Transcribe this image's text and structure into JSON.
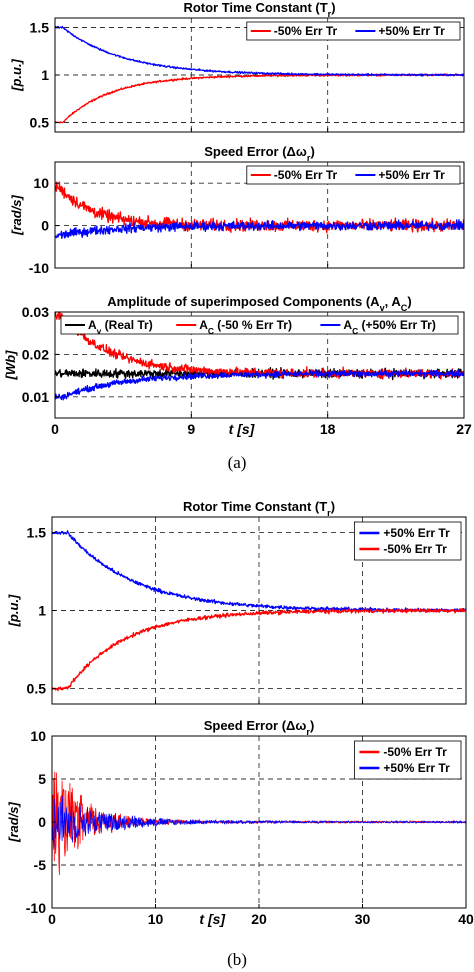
{
  "captions": {
    "a": "(a)",
    "b": "(b)"
  },
  "chart_data": [
    {
      "id": "a1",
      "type": "line",
      "title": "Rotor Time Constant (T",
      "title_sub": "r",
      "title_tail": ")",
      "ylabel": "[p.u.]",
      "xlim": [
        0,
        27
      ],
      "ylim": [
        0.4,
        1.6
      ],
      "xticks": [
        0,
        9,
        18,
        27
      ],
      "show_xticklabels": false,
      "yticks": [
        0.5,
        1,
        1.5
      ],
      "yticklabels": [
        "0.5",
        "1",
        "1.5"
      ],
      "grid": true,
      "legend_position": "top-right",
      "legend_layout": "row",
      "series": [
        {
          "name": "-50% Err Tr",
          "color": "#ff0000",
          "model": "exp",
          "start": 0.5,
          "end": 1.0,
          "tau": 3.2,
          "delay": 0.5,
          "noise": 0.008
        },
        {
          "name": "+50% Err Tr",
          "color": "#0000ff",
          "model": "exp",
          "start": 1.5,
          "end": 1.0,
          "tau": 4.0,
          "delay": 0.5,
          "noise": 0.008
        }
      ]
    },
    {
      "id": "a2",
      "type": "line",
      "title": "Speed Error (Δω",
      "title_sub": "r",
      "title_tail": ")",
      "ylabel": "[rad/s]",
      "xlim": [
        0,
        27
      ],
      "ylim": [
        -10,
        15
      ],
      "xticks": [
        0,
        9,
        18,
        27
      ],
      "show_xticklabels": false,
      "yticks": [
        -10,
        0,
        10
      ],
      "yticklabels": [
        "-10",
        "0",
        "10"
      ],
      "grid": true,
      "legend_position": "top-right",
      "legend_layout": "row",
      "series": [
        {
          "name": "-50% Err Tr",
          "color": "#ff0000",
          "model": "exp",
          "start": 9,
          "end": 0,
          "tau": 2.3,
          "delay": 0.3,
          "noise": 1.2
        },
        {
          "name": "+50% Err Tr",
          "color": "#0000ff",
          "model": "exp",
          "start": -2.5,
          "end": 0,
          "tau": 3.5,
          "delay": 0,
          "noise": 0.9
        }
      ]
    },
    {
      "id": "a3",
      "type": "line",
      "title": "Amplitude of superimposed Components (A",
      "title_sub": "v",
      "title_tail": ", A",
      "title_sub2": "C",
      "title_tail2": ")",
      "ylabel": "[Wb]",
      "xlabel": "t [s]",
      "xlim": [
        0,
        27
      ],
      "ylim": [
        0.005,
        0.03
      ],
      "xticks": [
        0,
        9,
        18,
        27
      ],
      "xticklabels": [
        "0",
        "9",
        "18",
        "27"
      ],
      "show_xticklabels": true,
      "yticks": [
        0.01,
        0.02,
        0.03
      ],
      "yticklabels": [
        "0.01",
        "0.02",
        "0.03"
      ],
      "grid": true,
      "legend_position": "top",
      "legend_layout": "row",
      "series": [
        {
          "name": "A",
          "name_sub": "v",
          "name_tail": " (Real Tr)",
          "color": "#000000",
          "model": "exp",
          "start": 0.0155,
          "end": 0.0155,
          "tau": 3,
          "delay": 0,
          "noise": 0.0009
        },
        {
          "name": "A",
          "name_sub": "C",
          "name_tail": " (-50 % Err Tr)",
          "color": "#ff0000",
          "model": "exp",
          "start": 0.029,
          "end": 0.0155,
          "tau": 3.2,
          "delay": 0.5,
          "noise": 0.0009
        },
        {
          "name": "A",
          "name_sub": "C",
          "name_tail": " (+50% Err Tr)",
          "color": "#0000ff",
          "model": "exp",
          "start": 0.01,
          "end": 0.0155,
          "tau": 4.0,
          "delay": 0.5,
          "noise": 0.0006
        }
      ]
    },
    {
      "id": "b1",
      "type": "line",
      "title": "Rotor Time Constant (T",
      "title_sub": "r",
      "title_tail": ")",
      "ylabel": "[p.u.]",
      "xlim": [
        0,
        40
      ],
      "ylim": [
        0.4,
        1.6
      ],
      "xticks": [
        0,
        10,
        20,
        30,
        40
      ],
      "show_xticklabels": false,
      "yticks": [
        0.5,
        1,
        1.5
      ],
      "yticklabels": [
        "0.5",
        "1",
        "1.5"
      ],
      "grid": true,
      "legend_position": "top-right",
      "legend_layout": "column",
      "series": [
        {
          "name": "+50% Err Tr",
          "color": "#0000ff",
          "model": "exp",
          "start": 1.5,
          "end": 1.0,
          "tau": 6.5,
          "delay": 1.5,
          "noise": 0.01
        },
        {
          "name": "-50% Err Tr",
          "color": "#ff0000",
          "model": "exp",
          "start": 0.5,
          "end": 1.0,
          "tau": 5.5,
          "delay": 1.5,
          "noise": 0.01
        }
      ]
    },
    {
      "id": "b2",
      "type": "line",
      "title": "Speed Error (Δω",
      "title_sub": "r",
      "title_tail": ")",
      "ylabel": "[rad/s]",
      "xlabel": "t [s]",
      "xlim": [
        0,
        40
      ],
      "ylim": [
        -10,
        10
      ],
      "xticks": [
        0,
        10,
        20,
        30,
        40
      ],
      "xticklabels": [
        "0",
        "10",
        "20",
        "30",
        "40"
      ],
      "show_xticklabels": true,
      "yticks": [
        -10,
        -5,
        0,
        5,
        10
      ],
      "yticklabels": [
        "-10",
        "-5",
        "0",
        "5",
        "10"
      ],
      "grid": true,
      "legend_position": "top-right",
      "legend_layout": "column",
      "series": [
        {
          "name": "-50% Err Tr",
          "color": "#ff0000",
          "model": "osc",
          "amp": 8.5,
          "tau": 3.0,
          "floor": 0.15,
          "noise": 0
        },
        {
          "name": "+50% Err Tr",
          "color": "#0000ff",
          "model": "osc",
          "amp": 4.0,
          "tau": 4.5,
          "floor": 0.15,
          "noise": 0
        }
      ]
    }
  ]
}
